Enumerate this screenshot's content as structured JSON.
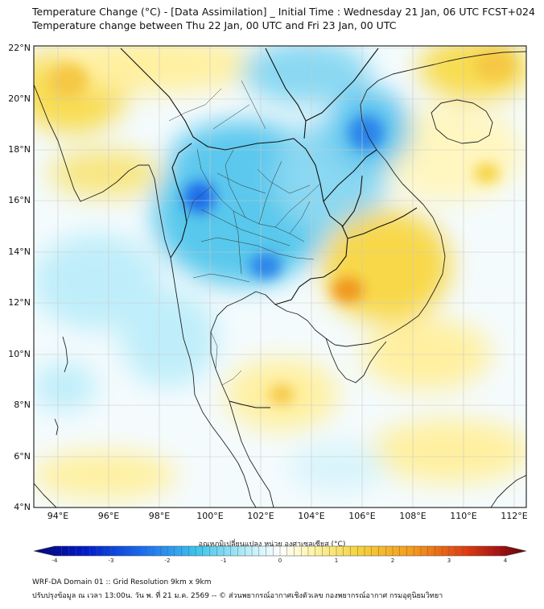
{
  "title": "Temperature Change (°C) - [Data Assimilation] _ Initial Time : Wednesday 21 Jan, 06 UTC FCST+024",
  "subtitle": "Temperature change between Thu 22 Jan, 00 UTC and Fri 23 Jan, 00 UTC",
  "map": {
    "lon_range": [
      93,
      112.5
    ],
    "lat_range": [
      4,
      22.2
    ],
    "lat_ticks": [
      "22°N",
      "20°N",
      "18°N",
      "16°N",
      "14°N",
      "12°N",
      "10°N",
      "8°N",
      "6°N",
      "4°N"
    ],
    "lon_ticks": [
      "94°E",
      "96°E",
      "98°E",
      "100°E",
      "102°E",
      "104°E",
      "106°E",
      "108°E",
      "110°E",
      "112°E"
    ],
    "grid": true
  },
  "colorbar": {
    "title": "อุณหภูมิเปลี่ยนแปลง หน่วย องศาเซลเซียส (°C)",
    "min": -4,
    "max": 4,
    "ticks": [
      "-4",
      "-3",
      "-2",
      "-1",
      "0",
      "1",
      "2",
      "3",
      "4"
    ],
    "colors": [
      "#08086e",
      "#0018c8",
      "#1a6cf0",
      "#3cc4ec",
      "#bff0fa",
      "#ffffff",
      "#fff6b0",
      "#f5d23c",
      "#f59a1a",
      "#e03a12",
      "#a00f0f",
      "#5a0a0a"
    ]
  },
  "footer": {
    "line1": "WRF-DA Domain 01 :: Grid Resolution 9km x 9km",
    "line2": "ปรับปรุงข้อมูล ณ เวลา 13:00น. วัน พ. ที่ 21 ม.ค. 2569 -- © ส่วนพยากรณ์อากาศเชิงตัวเลข กองพยากรณ์อากาศ กรมอุตุนิยมวิทยา"
  }
}
